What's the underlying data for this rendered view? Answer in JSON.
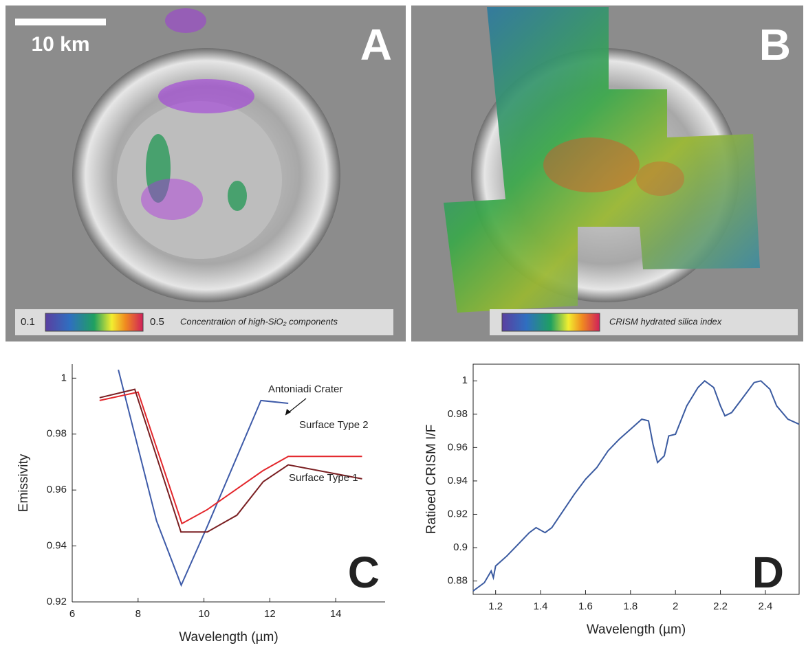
{
  "panels": [
    {
      "panel_label": "A",
      "scale_bar": "10 km",
      "colorbar": {
        "min": 0.1,
        "max": 0.5,
        "label": "Concentration of high-SiO₂ components"
      }
    },
    {
      "panel_label": "B",
      "colorbar": {
        "label": "CRISM hydrated silica index"
      }
    }
  ],
  "chart_data": [
    {
      "type": "line",
      "panel_label": "C",
      "xlabel": "Wavelength (µm)",
      "ylabel": "Emissivity",
      "xlim": [
        6,
        15.5
      ],
      "ylim": [
        0.92,
        1.005
      ],
      "xticks": [
        6,
        8,
        10,
        12,
        14
      ],
      "yticks": [
        0.92,
        0.94,
        0.96,
        0.98,
        1
      ],
      "annotations": [
        "Antoniadi Crater",
        "Surface Type 2",
        "Surface Type 1"
      ],
      "series": [
        {
          "name": "Antoniadi Crater",
          "color": "#3d5aa8",
          "x": [
            7.4,
            8.56,
            9.31,
            10.1,
            11.73,
            12.56
          ],
          "values": [
            1.003,
            0.949,
            0.926,
            0.947,
            0.992,
            0.991
          ]
        },
        {
          "name": "Surface Type 2",
          "color": "#e3262b",
          "x": [
            6.83,
            8.0,
            9.33,
            10.1,
            11.8,
            12.56,
            14.8
          ],
          "values": [
            0.992,
            0.995,
            0.948,
            0.953,
            0.967,
            0.972,
            0.972
          ]
        },
        {
          "name": "Surface Type 1",
          "color": "#7a1f22",
          "x": [
            6.83,
            7.9,
            9.3,
            10.1,
            11.0,
            11.8,
            12.56,
            14.8
          ],
          "values": [
            0.993,
            0.996,
            0.945,
            0.945,
            0.951,
            0.963,
            0.969,
            0.964
          ]
        }
      ]
    },
    {
      "type": "line",
      "panel_label": "D",
      "xlabel": "Wavelength (µm)",
      "ylabel": "Ratioed CRISM I/F",
      "xlim": [
        1.1,
        2.55
      ],
      "ylim": [
        0.872,
        1.01
      ],
      "xticks": [
        1.2,
        1.4,
        1.6,
        1.8,
        2,
        2.2,
        2.4
      ],
      "yticks": [
        0.88,
        0.9,
        0.92,
        0.94,
        0.96,
        0.98,
        1
      ],
      "series": [
        {
          "color": "#3a5aa0",
          "x": [
            1.1,
            1.15,
            1.18,
            1.19,
            1.2,
            1.25,
            1.3,
            1.35,
            1.38,
            1.42,
            1.45,
            1.5,
            1.55,
            1.6,
            1.65,
            1.7,
            1.75,
            1.8,
            1.85,
            1.88,
            1.9,
            1.92,
            1.95,
            1.97,
            2.0,
            2.05,
            2.1,
            2.13,
            2.17,
            2.2,
            2.22,
            2.25,
            2.3,
            2.35,
            2.38,
            2.42,
            2.45,
            2.5,
            2.55
          ],
          "values": [
            0.874,
            0.879,
            0.886,
            0.882,
            0.889,
            0.895,
            0.902,
            0.909,
            0.912,
            0.909,
            0.912,
            0.922,
            0.932,
            0.941,
            0.948,
            0.958,
            0.965,
            0.971,
            0.977,
            0.976,
            0.962,
            0.951,
            0.955,
            0.967,
            0.968,
            0.985,
            0.996,
            1.0,
            0.996,
            0.985,
            0.979,
            0.981,
            0.99,
            0.999,
            1.0,
            0.995,
            0.985,
            0.977,
            0.974
          ]
        }
      ]
    }
  ]
}
